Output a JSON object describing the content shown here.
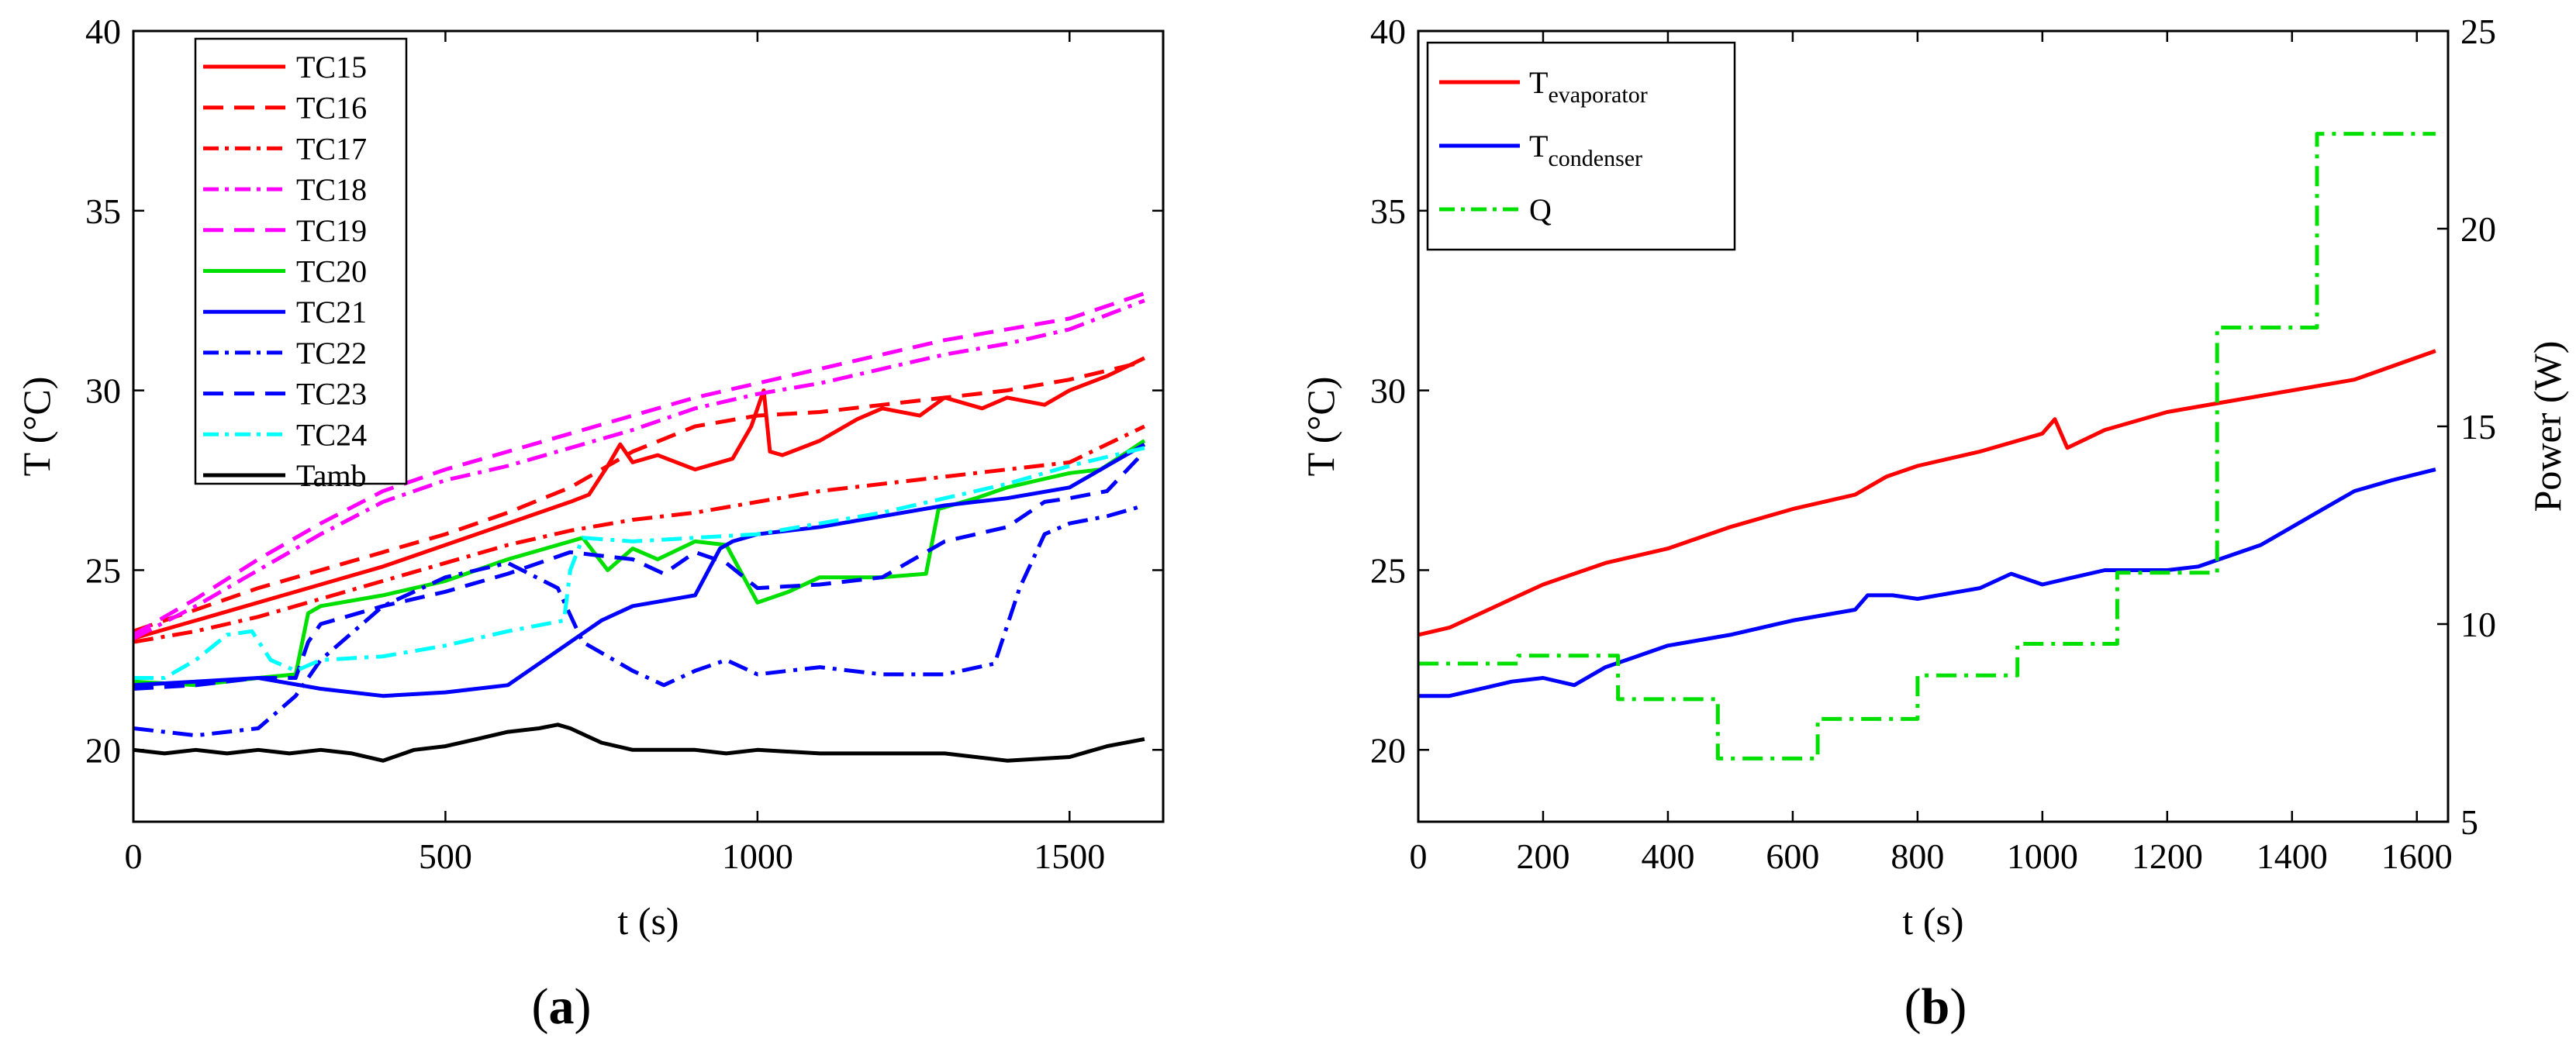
{
  "chart_data": [
    {
      "type": "line",
      "panel_label": {
        "open": "(",
        "letter": "a",
        "close": ")"
      },
      "xlabel": "t (s)",
      "ylabel": "T (°C)",
      "xlim": [
        0,
        1650
      ],
      "ylim": [
        18,
        40
      ],
      "xticks": [
        0,
        500,
        1000,
        1500
      ],
      "xtick_labels": [
        "0",
        "500",
        "1000",
        "1500"
      ],
      "yticks": [
        20,
        25,
        30,
        35,
        40
      ],
      "ytick_labels": [
        "20",
        "25",
        "30",
        "35",
        "40"
      ],
      "legend_position": "top-left",
      "series": [
        {
          "name": "TC15",
          "color": "#ff0000",
          "style": "solid",
          "x": [
            0,
            100,
            200,
            300,
            400,
            500,
            600,
            700,
            730,
            760,
            780,
            800,
            840,
            900,
            960,
            990,
            1010,
            1020,
            1040,
            1100,
            1160,
            1200,
            1260,
            1300,
            1360,
            1400,
            1460,
            1500,
            1560,
            1620
          ],
          "y": [
            23.1,
            23.6,
            24.1,
            24.6,
            25.1,
            25.7,
            26.3,
            26.9,
            27.1,
            27.9,
            28.5,
            28.0,
            28.2,
            27.8,
            28.1,
            29.0,
            30.0,
            28.3,
            28.2,
            28.6,
            29.2,
            29.5,
            29.3,
            29.8,
            29.5,
            29.8,
            29.6,
            30.0,
            30.4,
            30.9
          ]
        },
        {
          "name": "TC16",
          "color": "#ff0000",
          "style": "dash",
          "x": [
            0,
            100,
            200,
            300,
            400,
            500,
            600,
            700,
            800,
            900,
            1000,
            1100,
            1200,
            1300,
            1400,
            1500,
            1620
          ],
          "y": [
            23.3,
            23.9,
            24.5,
            25.0,
            25.5,
            26.0,
            26.6,
            27.3,
            28.3,
            29.0,
            29.3,
            29.4,
            29.6,
            29.8,
            30.0,
            30.3,
            30.8
          ]
        },
        {
          "name": "TC17",
          "color": "#ff0000",
          "style": "dashdot",
          "x": [
            0,
            100,
            200,
            300,
            400,
            500,
            600,
            700,
            800,
            900,
            1000,
            1100,
            1200,
            1300,
            1400,
            1500,
            1620
          ],
          "y": [
            23.0,
            23.3,
            23.7,
            24.2,
            24.7,
            25.2,
            25.7,
            26.1,
            26.4,
            26.6,
            26.9,
            27.2,
            27.4,
            27.6,
            27.8,
            28.0,
            29.0
          ]
        },
        {
          "name": "TC18",
          "color": "#ff00ff",
          "style": "dashdot",
          "x": [
            0,
            100,
            200,
            300,
            400,
            500,
            600,
            700,
            800,
            900,
            1000,
            1100,
            1200,
            1300,
            1400,
            1500,
            1620
          ],
          "y": [
            23.1,
            24.0,
            25.0,
            26.0,
            26.9,
            27.5,
            27.9,
            28.4,
            28.9,
            29.5,
            29.9,
            30.2,
            30.6,
            31.0,
            31.3,
            31.7,
            32.5
          ]
        },
        {
          "name": "TC19",
          "color": "#ff00ff",
          "style": "dash",
          "x": [
            0,
            100,
            200,
            300,
            400,
            500,
            600,
            700,
            800,
            900,
            1000,
            1100,
            1200,
            1300,
            1400,
            1500,
            1620
          ],
          "y": [
            23.2,
            24.2,
            25.3,
            26.3,
            27.2,
            27.8,
            28.3,
            28.8,
            29.3,
            29.8,
            30.2,
            30.6,
            31.0,
            31.4,
            31.7,
            32.0,
            32.7
          ]
        },
        {
          "name": "TC20",
          "color": "#00e000",
          "style": "solid",
          "x": [
            0,
            100,
            200,
            260,
            280,
            300,
            400,
            500,
            600,
            700,
            720,
            760,
            800,
            840,
            900,
            950,
            1000,
            1050,
            1100,
            1200,
            1270,
            1290,
            1350,
            1400,
            1450,
            1500,
            1550,
            1620
          ],
          "y": [
            21.9,
            21.8,
            22.0,
            22.1,
            23.8,
            24.0,
            24.3,
            24.7,
            25.3,
            25.8,
            25.9,
            25.0,
            25.6,
            25.3,
            25.8,
            25.7,
            24.1,
            24.4,
            24.8,
            24.8,
            24.9,
            26.7,
            27.0,
            27.3,
            27.5,
            27.7,
            27.8,
            28.6
          ]
        },
        {
          "name": "TC21",
          "color": "#0000ff",
          "style": "solid",
          "x": [
            0,
            100,
            200,
            300,
            400,
            500,
            600,
            650,
            700,
            750,
            800,
            900,
            940,
            960,
            1000,
            1100,
            1200,
            1300,
            1400,
            1500,
            1560,
            1620
          ],
          "y": [
            21.8,
            21.9,
            22.0,
            21.7,
            21.5,
            21.6,
            21.8,
            22.4,
            23.0,
            23.6,
            24.0,
            24.3,
            25.6,
            25.8,
            26.0,
            26.2,
            26.5,
            26.8,
            27.0,
            27.3,
            27.9,
            28.5
          ]
        },
        {
          "name": "TC22",
          "color": "#0000ff",
          "style": "dashdot",
          "x": [
            0,
            100,
            200,
            260,
            300,
            400,
            500,
            600,
            680,
            720,
            800,
            850,
            900,
            950,
            1000,
            1100,
            1200,
            1300,
            1380,
            1420,
            1460,
            1500,
            1560,
            1620
          ],
          "y": [
            20.6,
            20.4,
            20.6,
            21.5,
            22.5,
            24.0,
            24.8,
            25.2,
            24.5,
            23.0,
            22.2,
            21.8,
            22.2,
            22.5,
            22.1,
            22.3,
            22.1,
            22.1,
            22.4,
            24.5,
            26.0,
            26.3,
            26.5,
            26.8
          ]
        },
        {
          "name": "TC23",
          "color": "#0000ff",
          "style": "dash",
          "x": [
            0,
            100,
            200,
            260,
            280,
            300,
            400,
            500,
            600,
            700,
            800,
            850,
            900,
            950,
            1000,
            1100,
            1200,
            1300,
            1400,
            1460,
            1500,
            1560,
            1620
          ],
          "y": [
            21.7,
            21.8,
            22.0,
            22.0,
            23.0,
            23.5,
            24.0,
            24.4,
            24.9,
            25.5,
            25.3,
            24.9,
            25.5,
            25.2,
            24.5,
            24.6,
            24.8,
            25.8,
            26.2,
            26.9,
            27.0,
            27.2,
            28.3
          ]
        },
        {
          "name": "TC24",
          "color": "#00ffff",
          "style": "dashdot",
          "x": [
            0,
            50,
            100,
            150,
            190,
            220,
            260,
            300,
            400,
            500,
            600,
            690,
            700,
            720,
            800,
            900,
            1000,
            1100,
            1200,
            1300,
            1400,
            1500,
            1620
          ],
          "y": [
            22.0,
            22.0,
            22.5,
            23.2,
            23.3,
            22.5,
            22.2,
            22.5,
            22.6,
            22.9,
            23.3,
            23.6,
            25.0,
            25.9,
            25.8,
            25.9,
            26.0,
            26.3,
            26.6,
            27.0,
            27.4,
            27.9,
            28.4
          ]
        },
        {
          "name": "Tamb",
          "color": "#000000",
          "style": "solid",
          "x": [
            0,
            50,
            100,
            150,
            200,
            250,
            300,
            350,
            400,
            450,
            500,
            550,
            600,
            650,
            680,
            700,
            750,
            800,
            850,
            900,
            950,
            1000,
            1100,
            1200,
            1300,
            1400,
            1500,
            1560,
            1620
          ],
          "y": [
            20.0,
            19.9,
            20.0,
            19.9,
            20.0,
            19.9,
            20.0,
            19.9,
            19.7,
            20.0,
            20.1,
            20.3,
            20.5,
            20.6,
            20.7,
            20.6,
            20.2,
            20.0,
            20.0,
            20.0,
            19.9,
            20.0,
            19.9,
            19.9,
            19.9,
            19.7,
            19.8,
            20.1,
            20.3
          ]
        }
      ]
    },
    {
      "type": "line",
      "panel_label": {
        "open": "(",
        "letter": "b",
        "close": ")"
      },
      "xlabel": "t (s)",
      "ylabel": "T (°C)",
      "ylabel_right": "Power (W)",
      "xlim": [
        0,
        1650
      ],
      "ylim": [
        18,
        40
      ],
      "ylim_right": [
        5,
        25
      ],
      "xticks": [
        0,
        200,
        400,
        600,
        800,
        1000,
        1200,
        1400,
        1600
      ],
      "xtick_labels": [
        "0",
        "200",
        "400",
        "600",
        "800",
        "1000",
        "1200",
        "1400",
        "1600"
      ],
      "yticks": [
        20,
        25,
        30,
        35,
        40
      ],
      "ytick_labels": [
        "20",
        "25",
        "30",
        "35",
        "40"
      ],
      "yticks_right": [
        5,
        10,
        15,
        20,
        25
      ],
      "ytick_labels_right": [
        "5",
        "10",
        "15",
        "20",
        "25"
      ],
      "legend_position": "top-left",
      "series": [
        {
          "name": "T",
          "subscript": "evaporator",
          "axis": "left",
          "color": "#ff0000",
          "style": "solid",
          "x": [
            0,
            50,
            100,
            150,
            200,
            300,
            400,
            500,
            600,
            700,
            750,
            800,
            900,
            1000,
            1020,
            1040,
            1100,
            1200,
            1300,
            1400,
            1500,
            1630
          ],
          "y": [
            23.2,
            23.4,
            23.8,
            24.2,
            24.6,
            25.2,
            25.6,
            26.2,
            26.7,
            27.1,
            27.6,
            27.9,
            28.3,
            28.8,
            29.2,
            28.4,
            28.9,
            29.4,
            29.7,
            30.0,
            30.3,
            31.1
          ]
        },
        {
          "name": "T",
          "subscript": "condenser",
          "axis": "left",
          "color": "#0000ff",
          "style": "solid",
          "x": [
            0,
            50,
            100,
            150,
            200,
            250,
            300,
            350,
            400,
            500,
            600,
            700,
            720,
            760,
            800,
            900,
            950,
            1000,
            1050,
            1100,
            1200,
            1250,
            1300,
            1350,
            1400,
            1450,
            1500,
            1560,
            1630
          ],
          "y": [
            21.5,
            21.5,
            21.7,
            21.9,
            22.0,
            21.8,
            22.3,
            22.6,
            22.9,
            23.2,
            23.6,
            23.9,
            24.3,
            24.3,
            24.2,
            24.5,
            24.9,
            24.6,
            24.8,
            25.0,
            25.0,
            25.1,
            25.4,
            25.7,
            26.2,
            26.7,
            27.2,
            27.5,
            27.8
          ]
        },
        {
          "name": "Q",
          "subscript": "",
          "axis": "right",
          "color": "#00e000",
          "style": "dashdot",
          "step": true,
          "x": [
            0,
            160,
            320,
            480,
            640,
            800,
            960,
            1120,
            1280,
            1440,
            1630
          ],
          "y": [
            9.0,
            9.2,
            8.1,
            6.6,
            7.6,
            8.7,
            9.5,
            11.3,
            17.5,
            22.4,
            22.4
          ]
        }
      ]
    }
  ]
}
